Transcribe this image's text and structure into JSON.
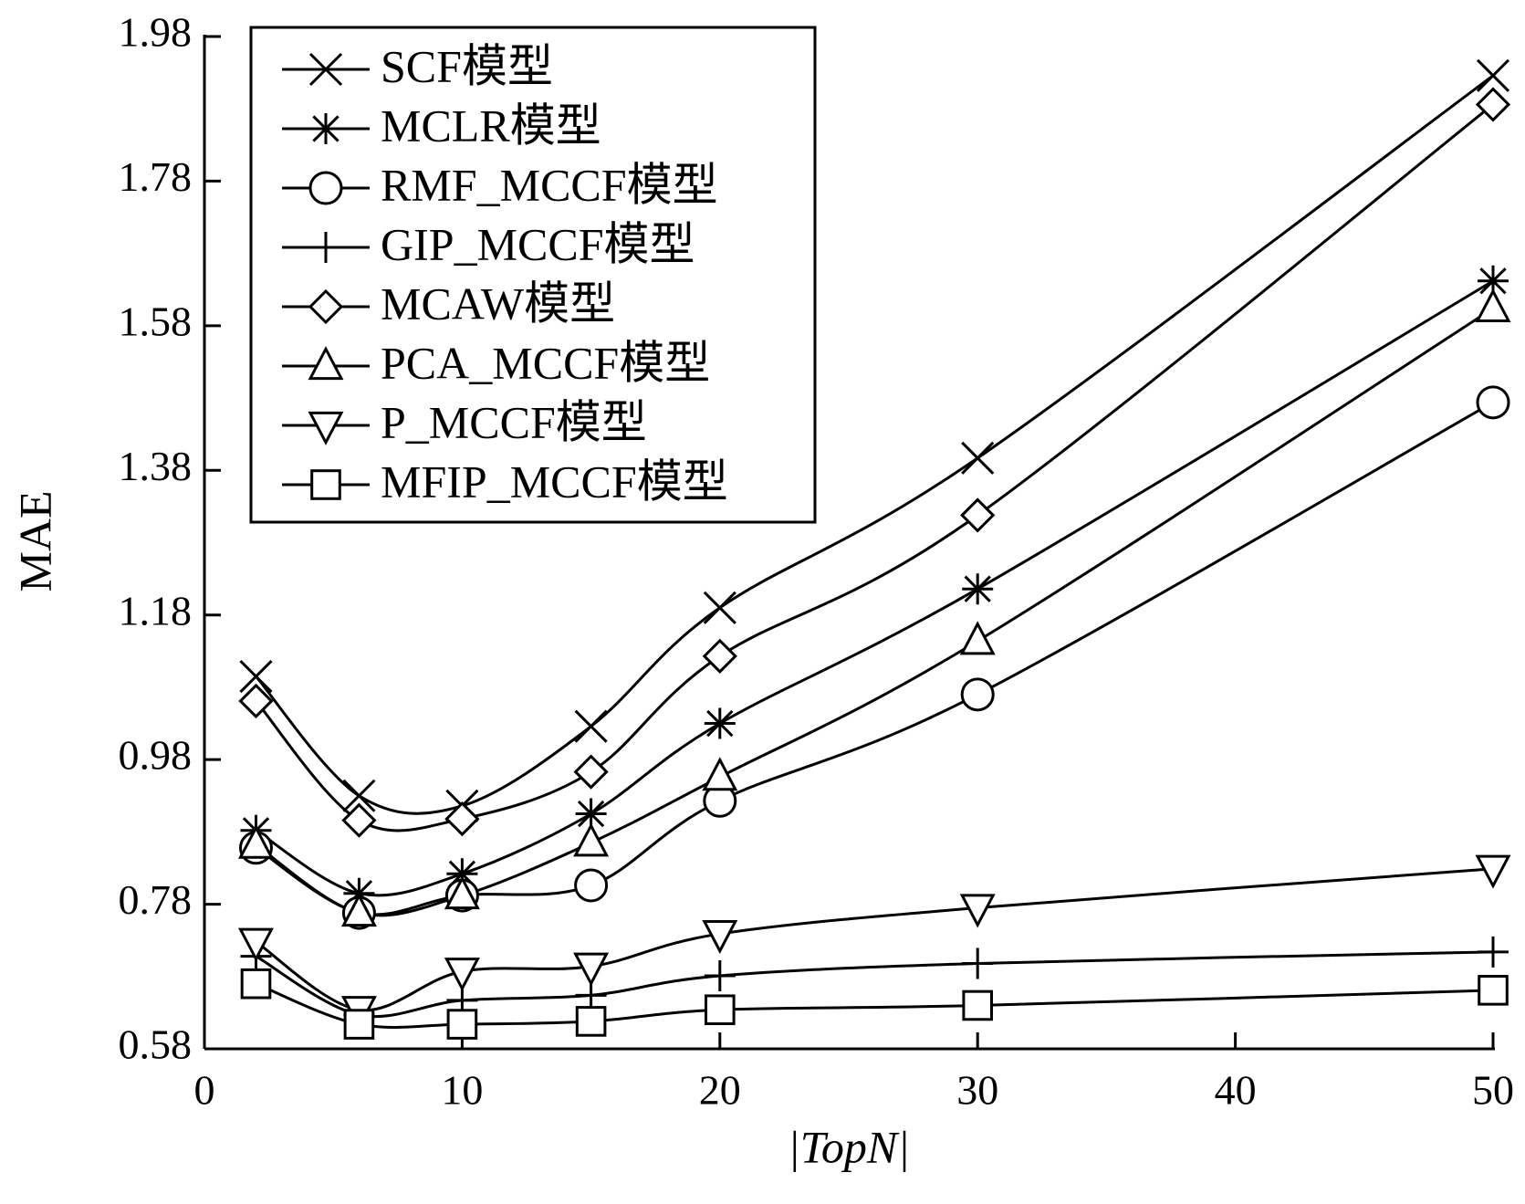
{
  "chart_data": {
    "type": "line",
    "x_label": "|TopN|",
    "y_label": "MAE",
    "x": [
      2,
      6,
      10,
      15,
      20,
      30,
      50
    ],
    "xlim": [
      0,
      50
    ],
    "xticks": [
      0,
      10,
      20,
      30,
      40,
      50
    ],
    "ylim": [
      0.58,
      1.98
    ],
    "yticks": [
      0.58,
      0.78,
      0.98,
      1.18,
      1.38,
      1.58,
      1.78,
      1.98
    ],
    "legend": "upper left",
    "series": [
      {
        "name": "SCF模型",
        "color": "#000000",
        "marker": "x",
        "values": [
          1.095,
          0.93,
          0.916,
          1.026,
          1.19,
          1.397,
          1.926
        ]
      },
      {
        "name": "MCLR模型",
        "color": "#000000",
        "marker": "asterisk",
        "values": [
          0.882,
          0.795,
          0.822,
          0.905,
          1.03,
          1.216,
          1.642
        ]
      },
      {
        "name": "RMF_MCCF模型",
        "color": "#000000",
        "marker": "circle",
        "values": [
          0.858,
          0.768,
          0.792,
          0.806,
          0.923,
          1.07,
          1.474
        ]
      },
      {
        "name": "GIP_MCCF模型",
        "color": "#000000",
        "marker": "plus",
        "values": [
          0.708,
          0.627,
          0.647,
          0.654,
          0.681,
          0.698,
          0.714
        ]
      },
      {
        "name": "MCAW模型",
        "color": "#000000",
        "marker": "diamond",
        "values": [
          1.061,
          0.896,
          0.898,
          0.963,
          1.123,
          1.318,
          1.886
        ]
      },
      {
        "name": "PCA_MCCF模型",
        "color": "#000000",
        "marker": "triangle-up",
        "values": [
          0.862,
          0.768,
          0.792,
          0.865,
          0.956,
          1.144,
          1.604
        ]
      },
      {
        "name": "P_MCCF模型",
        "color": "#000000",
        "marker": "triangle-down",
        "values": [
          0.728,
          0.634,
          0.687,
          0.694,
          0.739,
          0.775,
          0.829
        ]
      },
      {
        "name": "MFIP_MCCF模型",
        "color": "#000000",
        "marker": "square",
        "values": [
          0.67,
          0.614,
          0.614,
          0.618,
          0.634,
          0.64,
          0.661
        ]
      }
    ]
  }
}
